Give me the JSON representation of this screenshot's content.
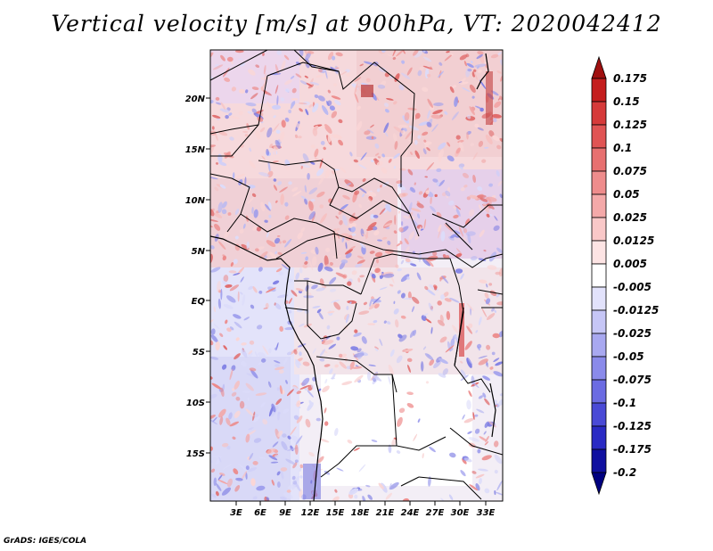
{
  "title": "Vertical velocity [m/s] at 900hPa, VT: 2020042412",
  "footer": "GrADS: IGES/COLA",
  "map": {
    "lon_labels": [
      "3E",
      "6E",
      "9E",
      "12E",
      "15E",
      "18E",
      "21E",
      "24E",
      "27E",
      "30E",
      "33E"
    ],
    "lat_labels": [
      "20N",
      "15N",
      "10N",
      "5N",
      "EQ",
      "5S",
      "10S",
      "15S"
    ]
  },
  "colorbar": {
    "labels": [
      "0.175",
      "0.15",
      "0.125",
      "0.1",
      "0.075",
      "0.05",
      "0.025",
      "0.0125",
      "0.005",
      "-0.005",
      "-0.0125",
      "-0.025",
      "-0.05",
      "-0.075",
      "-0.1",
      "-0.125",
      "-0.175",
      "-0.2"
    ],
    "colors": [
      "#a01010",
      "#c41e1e",
      "#d63a3a",
      "#e05454",
      "#e77070",
      "#ee8c8c",
      "#f4a9a9",
      "#f9c8c8",
      "#fde4e4",
      "#ffffff",
      "#e2e2fb",
      "#c6c6f6",
      "#a8a8f0",
      "#8a8aea",
      "#6b6be2",
      "#4a4ad6",
      "#2a2ac4",
      "#1010a0",
      "#000080"
    ]
  }
}
